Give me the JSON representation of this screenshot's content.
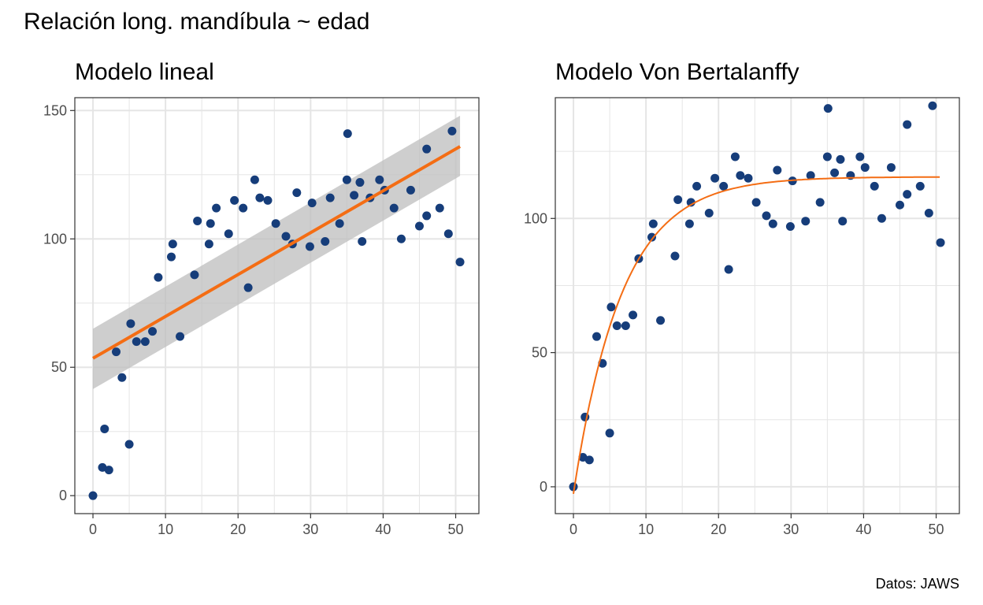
{
  "title": "Relación long. mandíbula ~ edad",
  "caption": "Datos: JAWS",
  "colors": {
    "points": "#163d7a",
    "fit": "#f46d14",
    "band": "#bebebe",
    "grid": "#e5e5e5",
    "panel_border": "#333333"
  },
  "chart_data": [
    {
      "type": "scatter",
      "title": "Modelo lineal",
      "xlabel": "",
      "ylabel": "",
      "xlim": [
        -2.5,
        53.2
      ],
      "ylim": [
        -7,
        155
      ],
      "xticks": [
        0,
        10,
        20,
        30,
        40,
        50
      ],
      "yticks": [
        0,
        50,
        100,
        150
      ],
      "grid": true,
      "points": {
        "x": [
          0,
          1.3,
          1.6,
          2.2,
          3.2,
          4,
          5,
          5.2,
          6,
          7.2,
          8.2,
          9,
          10.8,
          11,
          12,
          14,
          14.4,
          16,
          16.2,
          17,
          18.7,
          19.5,
          20.7,
          21.4,
          22.3,
          23,
          24.1,
          25.2,
          26.6,
          27.5,
          28.1,
          29.9,
          30.2,
          32,
          32.7,
          34,
          35,
          35.1,
          36,
          36.8,
          37.1,
          38.2,
          39.5,
          40.2,
          41.5,
          42.5,
          43.8,
          45,
          46,
          46,
          47.8,
          49,
          49.5,
          50.6
        ],
        "y": [
          0,
          11,
          26,
          10,
          56,
          46,
          20,
          67,
          60,
          60,
          64,
          85,
          93,
          98,
          62,
          86,
          107,
          98,
          106,
          112,
          102,
          115,
          112,
          81,
          123,
          116,
          115,
          106,
          101,
          98,
          118,
          97,
          114,
          99,
          116,
          106,
          123,
          141,
          117,
          122,
          99,
          116,
          123,
          119,
          112,
          100,
          119,
          105,
          135,
          109,
          112,
          102,
          142,
          91
        ]
      },
      "fit": {
        "type": "linear",
        "x": [
          0,
          50.6
        ],
        "y": [
          53.5,
          136
        ]
      },
      "band": {
        "x": [
          0,
          50.6
        ],
        "lower": [
          41.5,
          124.5
        ],
        "upper": [
          65,
          148
        ]
      }
    },
    {
      "type": "scatter",
      "title": "Modelo Von Bertalanffy",
      "xlabel": "",
      "ylabel": "",
      "xlim": [
        -2.5,
        53.2
      ],
      "ylim": [
        -10,
        145
      ],
      "xticks": [
        0,
        10,
        20,
        30,
        40,
        50
      ],
      "yticks": [
        0,
        50,
        100
      ],
      "grid": true,
      "points": {
        "x": [
          0,
          1.3,
          1.6,
          2.2,
          3.2,
          4,
          5,
          5.2,
          6,
          7.2,
          8.2,
          9,
          10.8,
          11,
          12,
          14,
          14.4,
          16,
          16.2,
          17,
          18.7,
          19.5,
          20.7,
          21.4,
          22.3,
          23,
          24.1,
          25.2,
          26.6,
          27.5,
          28.1,
          29.9,
          30.2,
          32,
          32.7,
          34,
          35,
          35.1,
          36,
          36.8,
          37.1,
          38.2,
          39.5,
          40.2,
          41.5,
          42.5,
          43.8,
          45,
          46,
          46,
          47.8,
          49,
          49.5,
          50.6
        ],
        "y": [
          0,
          11,
          26,
          10,
          56,
          46,
          20,
          67,
          60,
          60,
          64,
          85,
          93,
          98,
          62,
          86,
          107,
          98,
          106,
          112,
          102,
          115,
          112,
          81,
          123,
          116,
          115,
          106,
          101,
          98,
          118,
          97,
          114,
          99,
          116,
          106,
          123,
          141,
          117,
          122,
          99,
          116,
          123,
          119,
          112,
          100,
          119,
          105,
          135,
          109,
          112,
          102,
          142,
          91
        ]
      },
      "fit": {
        "type": "von_bertalanffy",
        "linf": 115.5,
        "k": 0.15,
        "t0": 0.15,
        "x_range": [
          0,
          50.6
        ]
      }
    }
  ]
}
